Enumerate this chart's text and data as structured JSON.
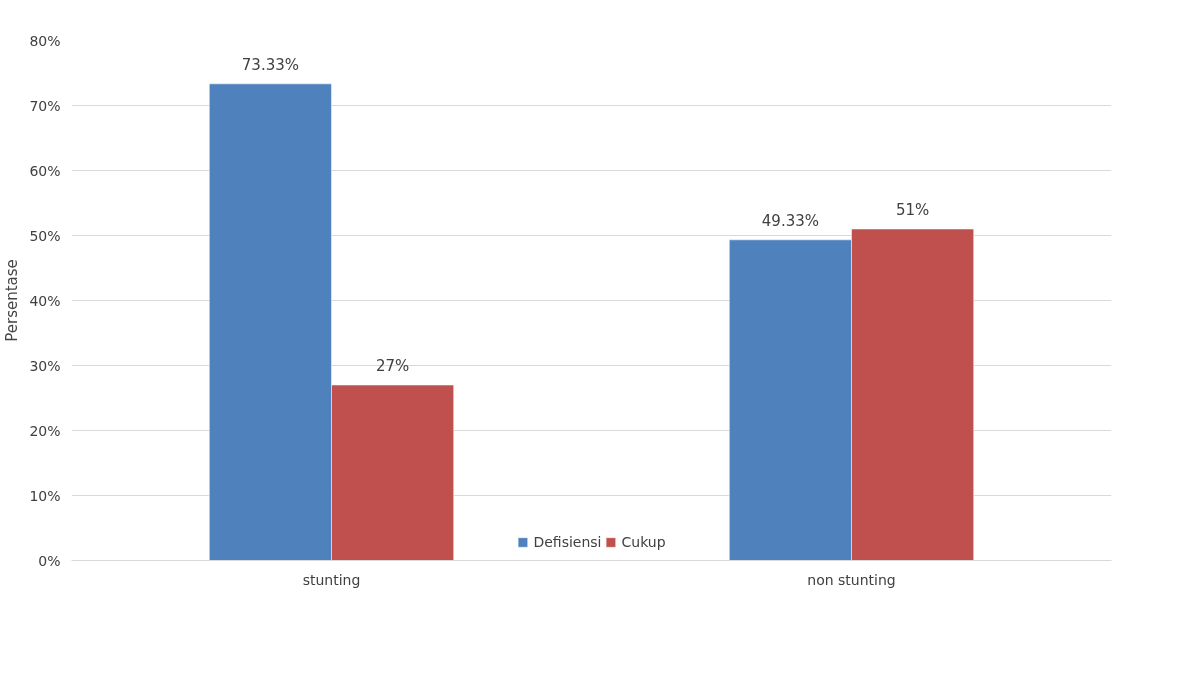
{
  "chart_data": {
    "type": "bar",
    "ylabel": "Persentase",
    "categories": [
      "stunting",
      "non stunting"
    ],
    "series": [
      {
        "name": "Defisiensi",
        "color": "#4f81bd",
        "values": [
          73.33,
          49.33
        ],
        "value_labels": [
          "73.33%",
          "49.33%"
        ]
      },
      {
        "name": "Cukup",
        "color": "#c0504d",
        "values": [
          27,
          51
        ],
        "value_labels": [
          "27%",
          "51%"
        ]
      }
    ],
    "ylim": [
      0,
      80
    ],
    "yticks": [
      {
        "value": 0,
        "label": "0%"
      },
      {
        "value": 10,
        "label": "10%"
      },
      {
        "value": 20,
        "label": "20%"
      },
      {
        "value": 30,
        "label": "30%"
      },
      {
        "value": 40,
        "label": "40%"
      },
      {
        "value": 50,
        "label": "50%"
      },
      {
        "value": 60,
        "label": "60%"
      },
      {
        "value": 70,
        "label": "70%"
      },
      {
        "value": 80,
        "label": "80%"
      }
    ],
    "grid": "y",
    "legend": "bottom"
  }
}
